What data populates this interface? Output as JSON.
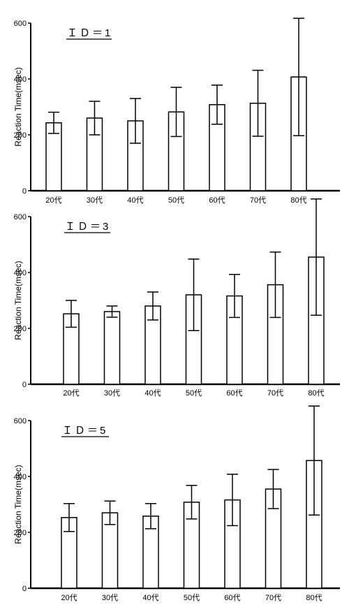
{
  "chart_data": [
    {
      "type": "bar",
      "title": "ＩＤ＝1",
      "ylabel": "Reaction Time(msec)",
      "xlabel": "",
      "categories": [
        "20代",
        "30代",
        "40代",
        "50代",
        "60代",
        "70代",
        "80代"
      ],
      "values": [
        243,
        260,
        250,
        282,
        308,
        313,
        407
      ],
      "error": [
        38,
        60,
        80,
        88,
        70,
        118,
        210
      ],
      "ylim": [
        0,
        600
      ],
      "yticks": [
        0,
        200,
        400,
        600
      ],
      "grid": false,
      "legend": "none"
    },
    {
      "type": "bar",
      "title": "ＩＤ＝3",
      "ylabel": "Reaction Time(msec)",
      "xlabel": "",
      "categories": [
        "20代",
        "30代",
        "40代",
        "50代",
        "60代",
        "70代",
        "80代"
      ],
      "values": [
        252,
        260,
        280,
        320,
        316,
        356,
        455
      ],
      "error": [
        48,
        20,
        50,
        128,
        77,
        117,
        208
      ],
      "ylim": [
        0,
        600
      ],
      "yticks": [
        0,
        200,
        400,
        600
      ],
      "grid": false,
      "legend": "none"
    },
    {
      "type": "bar",
      "title": "ＩＤ＝5",
      "ylabel": "Reaction Time(msec)",
      "xlabel": "",
      "categories": [
        "20代",
        "30代",
        "40代",
        "50代",
        "60代",
        "70代",
        "80代"
      ],
      "values": [
        253,
        270,
        258,
        308,
        316,
        355,
        457
      ],
      "error": [
        50,
        42,
        45,
        60,
        92,
        70,
        195
      ],
      "ylim": [
        0,
        600
      ],
      "yticks": [
        0,
        200,
        400,
        600
      ],
      "grid": false,
      "legend": "none"
    }
  ]
}
